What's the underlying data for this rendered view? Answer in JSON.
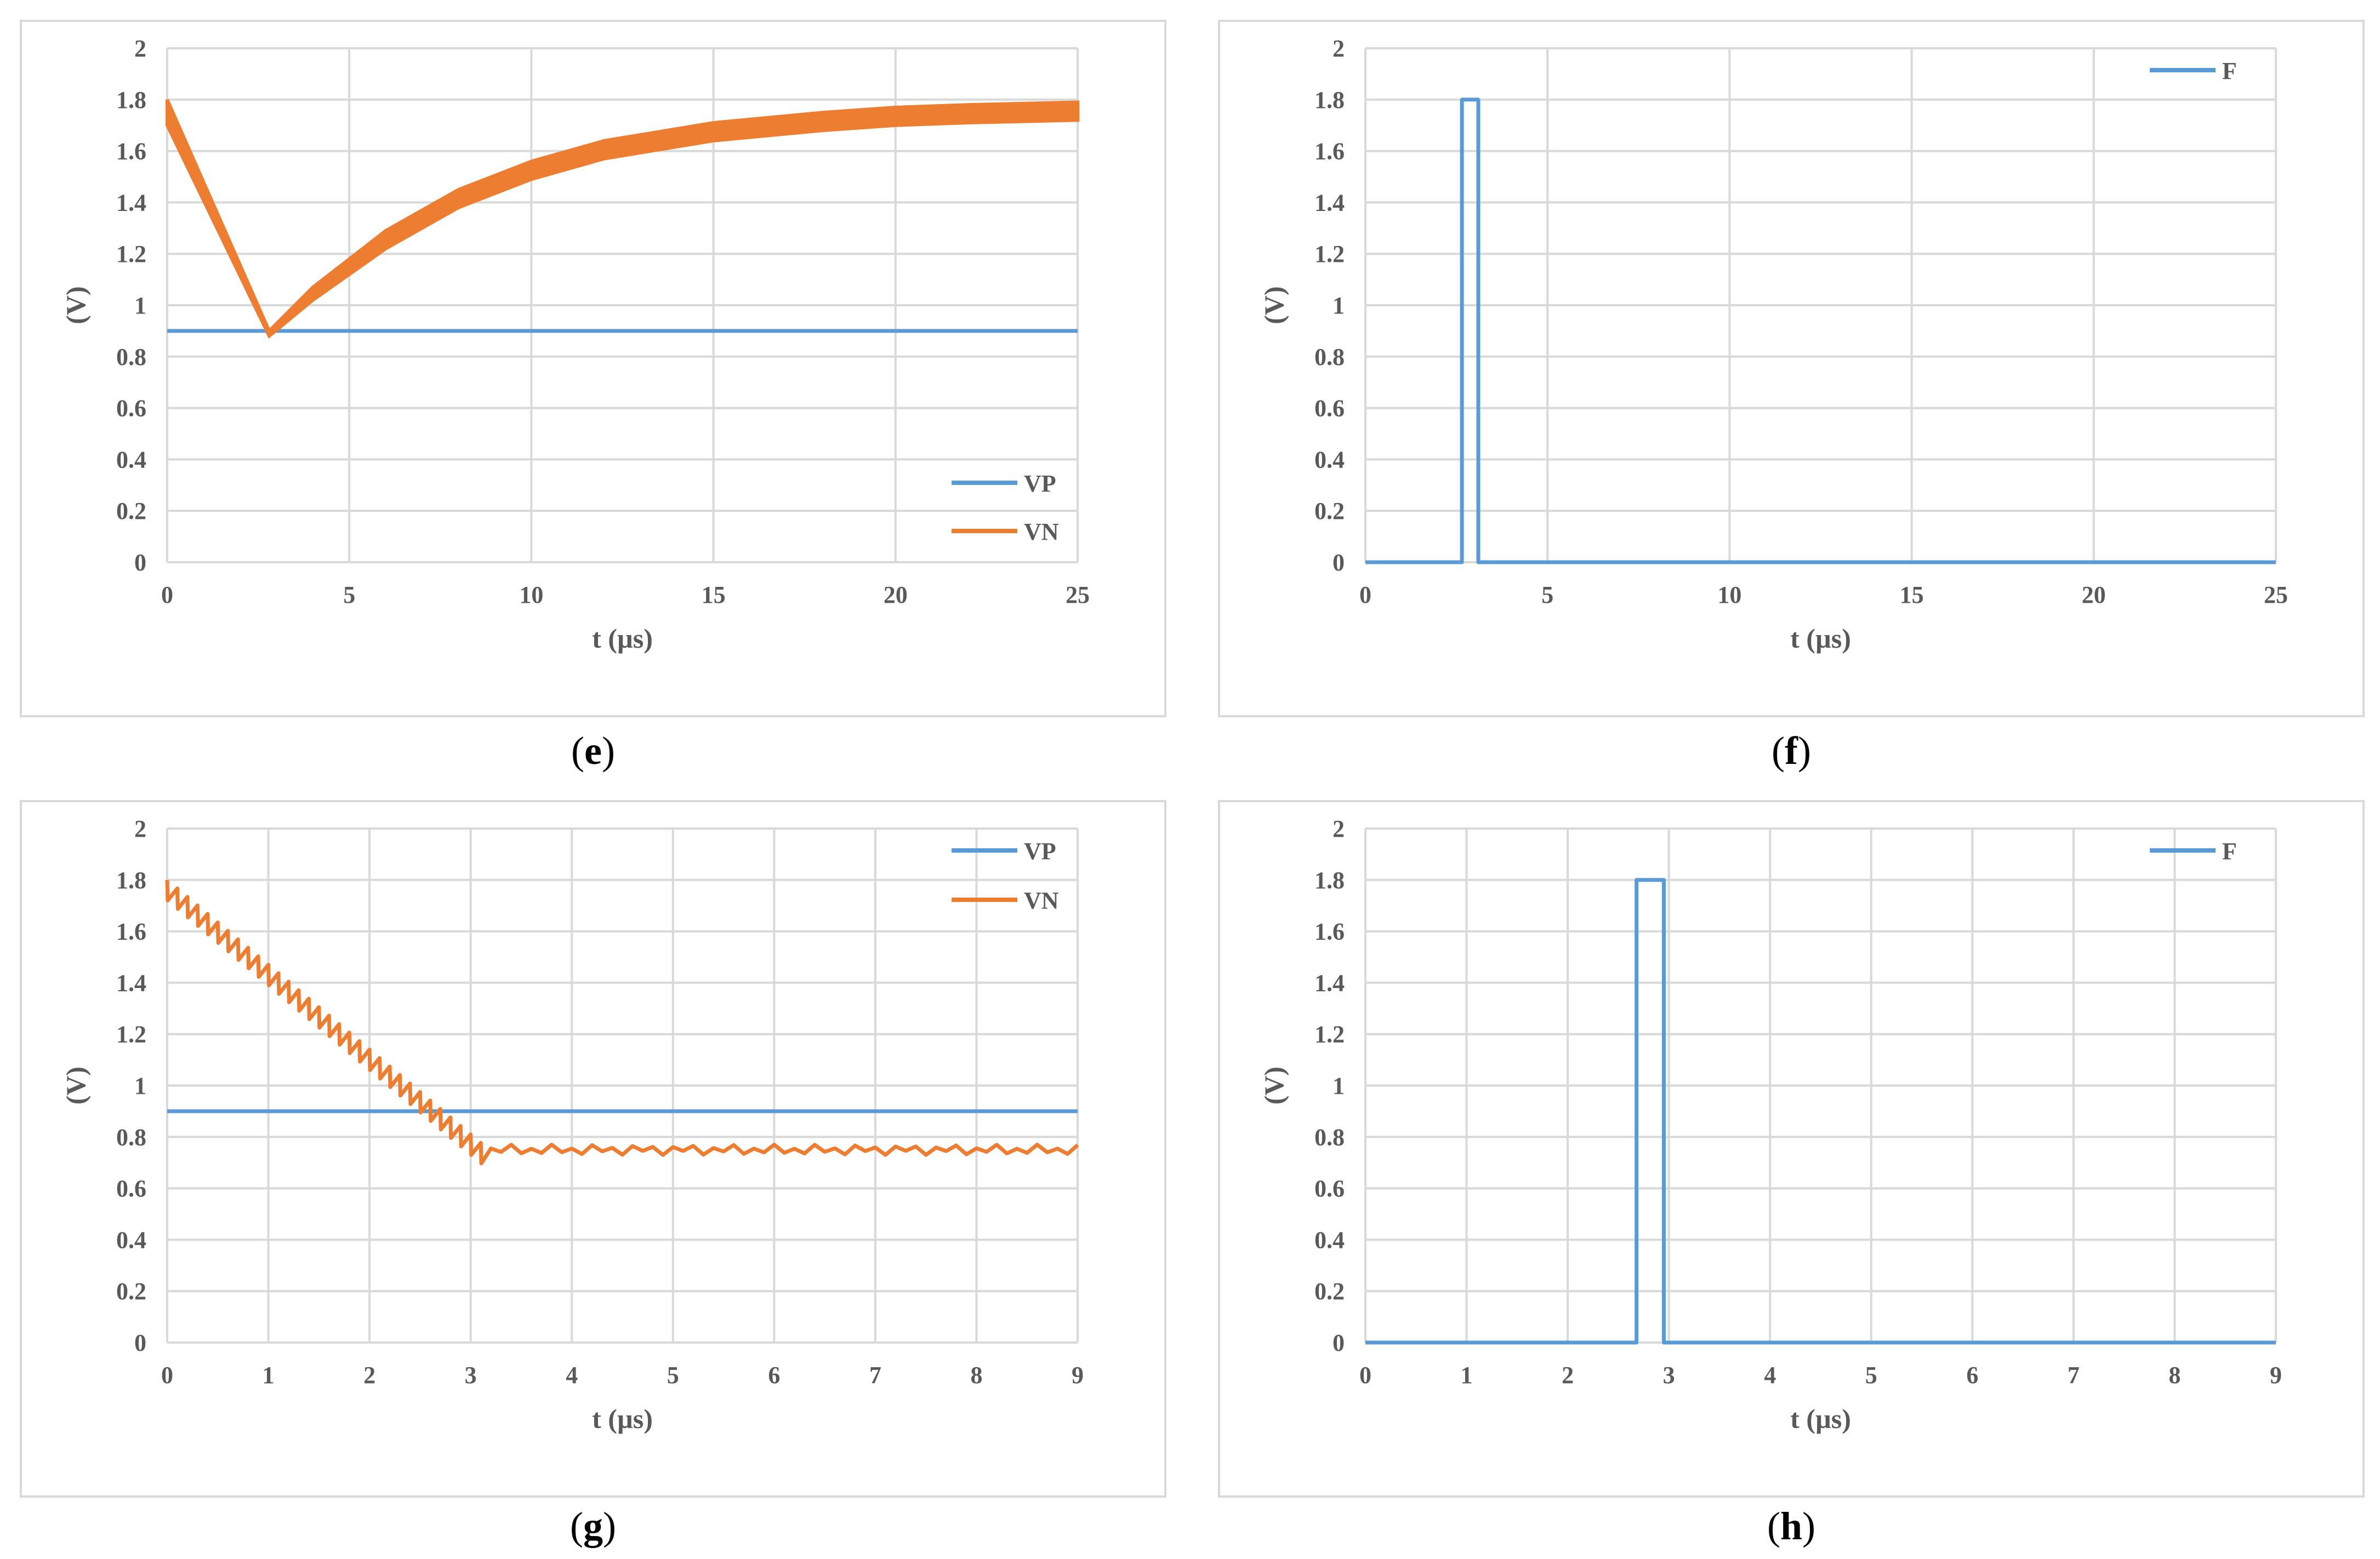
{
  "colors": {
    "vp": "#5b9bd5",
    "vn": "#ed7d31",
    "f": "#5b9bd5",
    "grid": "#d9d9d9",
    "axis_text": "#595959"
  },
  "chart_data": [
    {
      "id": "e",
      "type": "line",
      "caption": "e",
      "xlabel": "t (µs)",
      "ylabel": "(V)",
      "xlim": [
        0,
        25
      ],
      "ylim": [
        0,
        2
      ],
      "xticks": [
        0,
        5,
        10,
        15,
        20,
        25
      ],
      "yticks": [
        0,
        0.2,
        0.4,
        0.6,
        0.8,
        1,
        1.2,
        1.4,
        1.6,
        1.8,
        2
      ],
      "ytick_labels": [
        "0",
        "0.2",
        "0.4",
        "0.6",
        "0.8",
        "1",
        "1.2",
        "1.4",
        "1.6",
        "1.8",
        "2"
      ],
      "grid": true,
      "legend": "bottom-right",
      "series": [
        {
          "name": "VP",
          "color": "#5b9bd5",
          "x": [
            0,
            25
          ],
          "y": [
            0.9,
            0.9
          ]
        },
        {
          "name": "VN",
          "color": "#ed7d31",
          "band": true,
          "x": [
            0,
            2.8,
            4,
            6,
            8,
            10,
            12,
            15,
            18,
            20,
            22,
            25
          ],
          "y_upper": [
            1.8,
            0.9,
            1.07,
            1.29,
            1.45,
            1.56,
            1.64,
            1.71,
            1.75,
            1.77,
            1.78,
            1.79
          ],
          "y_lower": [
            1.7,
            0.88,
            1.02,
            1.22,
            1.38,
            1.49,
            1.57,
            1.64,
            1.68,
            1.7,
            1.71,
            1.72
          ]
        }
      ]
    },
    {
      "id": "f",
      "type": "line",
      "caption": "f",
      "xlabel": "t (µs)",
      "ylabel": "(V)",
      "xlim": [
        0,
        25
      ],
      "ylim": [
        0,
        2
      ],
      "xticks": [
        0,
        5,
        10,
        15,
        20,
        25
      ],
      "yticks": [
        0,
        0.2,
        0.4,
        0.6,
        0.8,
        1,
        1.2,
        1.4,
        1.6,
        1.8,
        2
      ],
      "ytick_labels": [
        "0",
        "0.2",
        "0.4",
        "0.6",
        "0.8",
        "1",
        "1.2",
        "1.4",
        "1.6",
        "1.8",
        "2"
      ],
      "grid": true,
      "legend": "top-right",
      "series": [
        {
          "name": "F",
          "color": "#5b9bd5",
          "x": [
            0,
            2.65,
            2.65,
            3.1,
            3.1,
            25
          ],
          "y": [
            0,
            0,
            1.8,
            1.8,
            0,
            0
          ]
        }
      ]
    },
    {
      "id": "g",
      "type": "line",
      "caption": "g",
      "xlabel": "t (µs)",
      "ylabel": "(V)",
      "xlim": [
        0,
        9
      ],
      "ylim": [
        0,
        2
      ],
      "xticks": [
        0,
        1,
        2,
        3,
        4,
        5,
        6,
        7,
        8,
        9
      ],
      "yticks": [
        0,
        0.2,
        0.4,
        0.6,
        0.8,
        1,
        1.2,
        1.4,
        1.6,
        1.8,
        2
      ],
      "ytick_labels": [
        "0",
        "0.2",
        "0.4",
        "0.6",
        "0.8",
        "1",
        "1.2",
        "1.4",
        "1.6",
        "1.8",
        "2"
      ],
      "grid": true,
      "legend": "top-right",
      "series": [
        {
          "name": "VP",
          "color": "#5b9bd5",
          "x": [
            0,
            9
          ],
          "y": [
            0.9,
            0.9
          ]
        },
        {
          "name": "VN",
          "color": "#ed7d31",
          "sawtooth": {
            "start": 1.8,
            "slope": -0.33,
            "knee_x": 3.2,
            "floor": 0.75,
            "ripple_period": 0.1,
            "ripple_depth": 0.08,
            "floor_ripple": 0.02
          }
        }
      ]
    },
    {
      "id": "h",
      "type": "line",
      "caption": "h",
      "xlabel": "t (µs)",
      "ylabel": "(V)",
      "xlim": [
        0,
        9
      ],
      "ylim": [
        0,
        2
      ],
      "xticks": [
        0,
        1,
        2,
        3,
        4,
        5,
        6,
        7,
        8,
        9
      ],
      "yticks": [
        0,
        0.2,
        0.4,
        0.6,
        0.8,
        1,
        1.2,
        1.4,
        1.6,
        1.8,
        2
      ],
      "ytick_labels": [
        "0",
        "0.2",
        "0.4",
        "0.6",
        "0.8",
        "1",
        "1.2",
        "1.4",
        "1.6",
        "1.8",
        "2"
      ],
      "grid": true,
      "legend": "top-right",
      "series": [
        {
          "name": "F",
          "color": "#5b9bd5",
          "x": [
            0,
            2.68,
            2.68,
            2.95,
            2.95,
            9
          ],
          "y": [
            0,
            0,
            1.8,
            1.8,
            0,
            0
          ]
        }
      ]
    }
  ]
}
